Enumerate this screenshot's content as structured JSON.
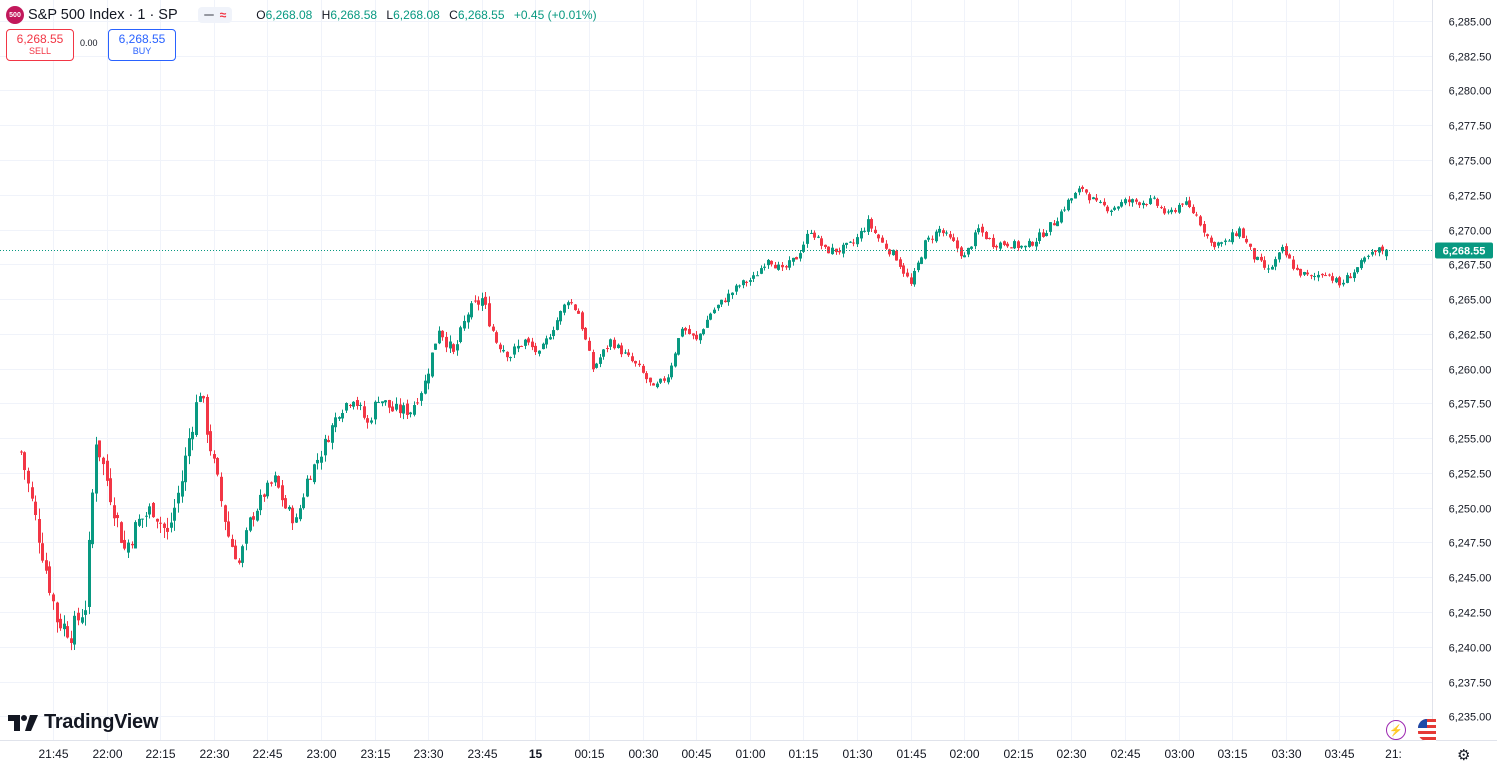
{
  "header": {
    "logo_text": "500",
    "symbol": "S&P 500 Index · 1 · SP",
    "ohlc": [
      {
        "key": "O",
        "value": "6,268.08"
      },
      {
        "key": "H",
        "value": "6,268.58"
      },
      {
        "key": "L",
        "value": "6,268.08"
      },
      {
        "key": "C",
        "value": "6,268.55"
      }
    ],
    "change": "+0.45 (+0.01%)"
  },
  "trade": {
    "sell_price": "6,268.55",
    "sell_label": "SELL",
    "spread": "0.00",
    "buy_price": "6,268.55",
    "buy_label": "BUY"
  },
  "brand": "TradingView",
  "colors": {
    "up": "#089981",
    "down": "#f23645",
    "grid": "#f0f3fa",
    "text": "#131722",
    "last_price": "#089981"
  },
  "icons": {
    "lightning": "lightning-icon",
    "flag": "us-flag-icon",
    "gear": "gear-icon"
  },
  "chart_data": {
    "type": "candlestick",
    "title": "S&P 500 Index · 1 · SP",
    "interval": "1 minute",
    "y_ticks": [
      "6,285.00",
      "6,282.50",
      "6,280.00",
      "6,277.50",
      "6,275.00",
      "6,272.50",
      "6,270.00",
      "6,267.50",
      "6,265.00",
      "6,262.50",
      "6,260.00",
      "6,257.50",
      "6,255.00",
      "6,252.50",
      "6,250.00",
      "6,247.50",
      "6,245.00",
      "6,242.50",
      "6,240.00",
      "6,237.50",
      "6,235.00"
    ],
    "y_tick_values": [
      6285,
      6282.5,
      6280,
      6277.5,
      6275,
      6272.5,
      6270,
      6267.5,
      6265,
      6262.5,
      6260,
      6257.5,
      6255,
      6252.5,
      6250,
      6247.5,
      6245,
      6242.5,
      6240,
      6237.5,
      6235
    ],
    "ylim": [
      6233.3,
      6286.5
    ],
    "x_ticks": [
      "21:45",
      "22:00",
      "22:15",
      "22:30",
      "22:45",
      "23:00",
      "23:15",
      "23:30",
      "23:45",
      "15",
      "00:15",
      "00:30",
      "00:45",
      "01:00",
      "01:15",
      "01:30",
      "01:45",
      "02:00",
      "02:15",
      "02:30",
      "02:45",
      "03:00",
      "03:15",
      "03:30",
      "03:45",
      "21:"
    ],
    "x_tick_minutes": [
      9,
      24,
      39,
      54,
      69,
      84,
      99,
      114,
      129,
      144,
      159,
      174,
      189,
      204,
      219,
      234,
      249,
      264,
      279,
      294,
      309,
      324,
      339,
      354,
      369,
      384
    ],
    "last_price": 6268.55,
    "last_price_label": "6,268.55",
    "anchor_path": [
      [
        0,
        6254
      ],
      [
        5,
        6248
      ],
      [
        10,
        6242
      ],
      [
        14,
        6241
      ],
      [
        18,
        6243
      ],
      [
        21,
        6255
      ],
      [
        25,
        6251
      ],
      [
        29,
        6247
      ],
      [
        33,
        6249
      ],
      [
        37,
        6250
      ],
      [
        41,
        6248
      ],
      [
        45,
        6252
      ],
      [
        47,
        6255
      ],
      [
        50,
        6258.5
      ],
      [
        54,
        6253
      ],
      [
        58,
        6248
      ],
      [
        61,
        6246
      ],
      [
        64,
        6249
      ],
      [
        68,
        6251
      ],
      [
        71,
        6252
      ],
      [
        74,
        6250
      ],
      [
        77,
        6249
      ],
      [
        80,
        6252
      ],
      [
        84,
        6254
      ],
      [
        89,
        6257
      ],
      [
        93,
        6258
      ],
      [
        97,
        6256
      ],
      [
        100,
        6258
      ],
      [
        104,
        6257
      ],
      [
        109,
        6257
      ],
      [
        113,
        6259
      ],
      [
        117,
        6263
      ],
      [
        121,
        6261
      ],
      [
        125,
        6264
      ],
      [
        129,
        6265
      ],
      [
        133,
        6262
      ],
      [
        137,
        6261
      ],
      [
        141,
        6262
      ],
      [
        145,
        6261
      ],
      [
        149,
        6263
      ],
      [
        153,
        6265
      ],
      [
        156,
        6264
      ],
      [
        160,
        6260
      ],
      [
        165,
        6262
      ],
      [
        169,
        6261
      ],
      [
        173,
        6260
      ],
      [
        177,
        6258.5
      ],
      [
        181,
        6259.5
      ],
      [
        185,
        6263
      ],
      [
        189,
        6262
      ],
      [
        193,
        6264
      ],
      [
        197,
        6265
      ],
      [
        201,
        6266
      ],
      [
        205,
        6266.5
      ],
      [
        209,
        6268
      ],
      [
        213,
        6267
      ],
      [
        217,
        6268
      ],
      [
        221,
        6270
      ],
      [
        225,
        6268.5
      ],
      [
        229,
        6268.5
      ],
      [
        233,
        6269
      ],
      [
        237,
        6270.5
      ],
      [
        241,
        6269
      ],
      [
        245,
        6268
      ],
      [
        249,
        6266
      ],
      [
        253,
        6269
      ],
      [
        257,
        6270
      ],
      [
        261,
        6269
      ],
      [
        264,
        6268
      ],
      [
        268,
        6270
      ],
      [
        272,
        6269
      ],
      [
        276,
        6269
      ],
      [
        281,
        6268.7
      ],
      [
        285,
        6269.5
      ],
      [
        289,
        6270.5
      ],
      [
        293,
        6272
      ],
      [
        297,
        6273
      ],
      [
        301,
        6271.8
      ],
      [
        305,
        6271.5
      ],
      [
        309,
        6272
      ],
      [
        313,
        6272
      ],
      [
        317,
        6272
      ],
      [
        321,
        6271
      ],
      [
        325,
        6272
      ],
      [
        329,
        6271
      ],
      [
        333,
        6269
      ],
      [
        337,
        6269
      ],
      [
        341,
        6270
      ],
      [
        345,
        6268
      ],
      [
        349,
        6267
      ],
      [
        353,
        6268.5
      ],
      [
        357,
        6267
      ],
      [
        361,
        6266.5
      ],
      [
        365,
        6267
      ],
      [
        369,
        6266
      ],
      [
        373,
        6267
      ],
      [
        377,
        6268
      ],
      [
        380,
        6268.5
      ],
      [
        382,
        6268.55
      ]
    ]
  }
}
